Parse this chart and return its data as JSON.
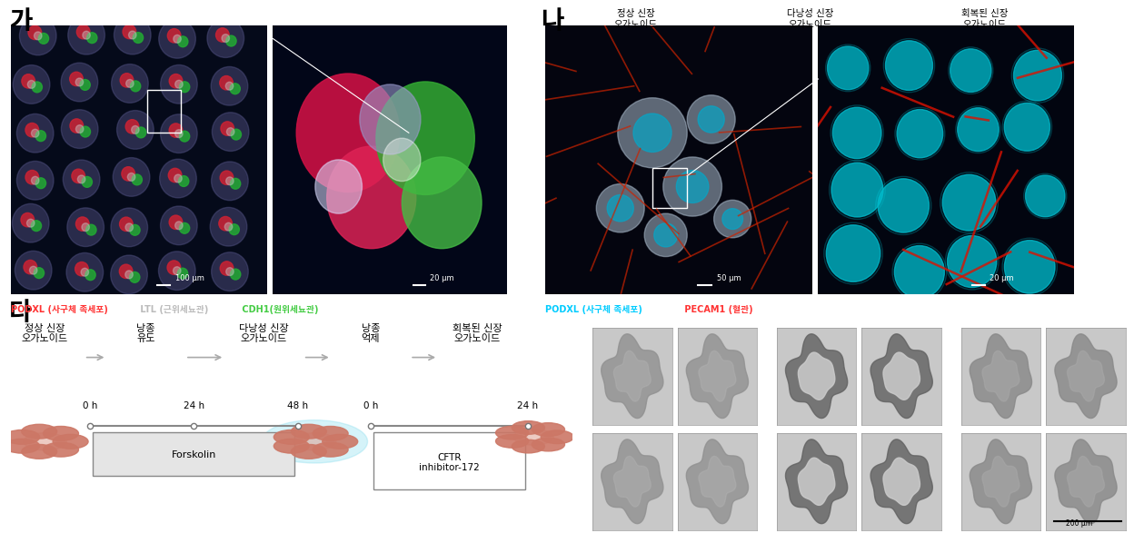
{
  "background_color": "#ffffff",
  "label_ga": "가",
  "label_na": "나",
  "label_da": "다",
  "label_fontsize": 20,
  "legend_ga_items": [
    {
      "text": "PODXL (사구체 족세포)",
      "color": "#ff3333"
    },
    {
      "text": " LTL (근위세뇨관)",
      "color": "#bbbbbb"
    },
    {
      "text": " CDH1(원위세뇨관)",
      "color": "#44cc44"
    }
  ],
  "legend_na_items": [
    {
      "text": "PODXL (사구체 족세포)",
      "color": "#00ccff"
    },
    {
      "text": " PECAM1 (혈관)",
      "color": "#ff3333"
    }
  ],
  "da_steps": [
    "정상 신장\n오가노이드",
    "낭종\n유도",
    "다낭성 신장\n오가노이드",
    "낭종\n억제",
    "회복된 신장\n오가노이드"
  ],
  "da_timeline1_label": "Forskolin",
  "da_timeline1_times": [
    "0 h",
    "24 h",
    "48 h"
  ],
  "da_timeline2_label": "CFTR\ninhibitor-172",
  "da_timeline2_times": [
    "0 h",
    "24 h"
  ],
  "grid_titles": [
    "정상 신장\n오가노이드",
    "다낭성 신장\n오가노이드",
    "회복된 신장\n오가노이드"
  ],
  "scale_ga_left": "100 μm",
  "scale_ga_right": "20 μm",
  "scale_na_left": "50 μm",
  "scale_na_right": "20 μm",
  "scale_grid": "200 μm"
}
